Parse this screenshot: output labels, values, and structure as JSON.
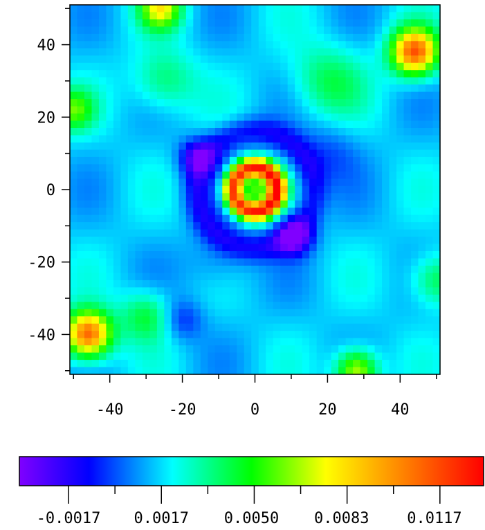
{
  "chart_data": {
    "type": "heatmap",
    "title": "",
    "xlabel": "",
    "ylabel": "",
    "xlim": [
      -51,
      51
    ],
    "ylim": [
      -51,
      51
    ],
    "x_ticks": [
      "-40",
      "-20",
      "0",
      "20",
      "40"
    ],
    "x_tick_values": [
      -40,
      -20,
      0,
      20,
      40
    ],
    "y_ticks": [
      "40",
      "20",
      "0",
      "-20",
      "-40"
    ],
    "y_tick_values": [
      40,
      20,
      0,
      -20,
      -40
    ],
    "grid": false,
    "colormap": "rainbow",
    "colorbar": {
      "range": [
        -0.0035,
        0.0135
      ],
      "tick_labels": [
        "-0.0017",
        "0.0017",
        "0.0050",
        "0.0083",
        "0.0117"
      ],
      "tick_values": [
        -0.0017,
        0.0017,
        0.005,
        0.0083,
        0.0117
      ]
    },
    "features": [
      {
        "kind": "peak",
        "x": 0,
        "y": 0,
        "value": 0.013,
        "note": "central ring"
      },
      {
        "kind": "peak",
        "x": 0,
        "y": 0,
        "value": 0.006
      },
      {
        "kind": "peak",
        "x": 44,
        "y": 38,
        "value": 0.0125
      },
      {
        "kind": "peak",
        "x": -46,
        "y": -40,
        "value": 0.0125
      },
      {
        "kind": "peak",
        "x": -26,
        "y": 50,
        "value": 0.009
      },
      {
        "kind": "peak",
        "x": 28,
        "y": -49,
        "value": 0.009
      },
      {
        "kind": "trough",
        "x": -16,
        "y": 9,
        "value": -0.0025
      },
      {
        "kind": "trough",
        "x": 11,
        "y": -13,
        "value": -0.003
      },
      {
        "kind": "trough",
        "x": -20,
        "y": -36,
        "value": -0.0015
      }
    ]
  }
}
